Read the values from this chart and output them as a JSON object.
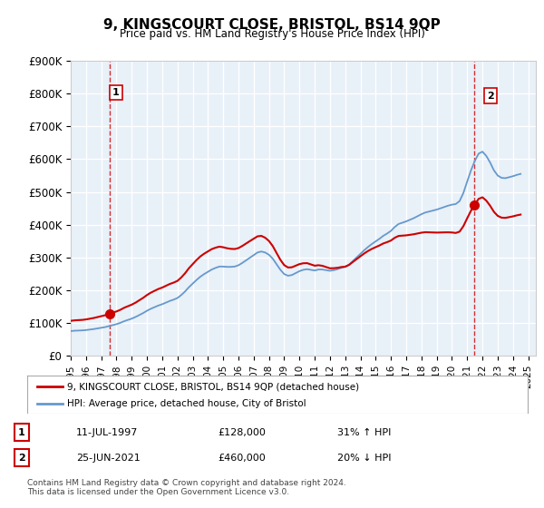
{
  "title": "9, KINGSCOURT CLOSE, BRISTOL, BS14 9QP",
  "subtitle": "Price paid vs. HM Land Registry's House Price Index (HPI)",
  "ylabel": "",
  "ylim": [
    0,
    900000
  ],
  "yticks": [
    0,
    100000,
    200000,
    300000,
    400000,
    500000,
    600000,
    700000,
    800000,
    900000
  ],
  "ytick_labels": [
    "£0",
    "£100K",
    "£200K",
    "£300K",
    "£400K",
    "£500K",
    "£600K",
    "£700K",
    "£800K",
    "£900K"
  ],
  "xlim_start": 1995.0,
  "xlim_end": 2025.5,
  "xticks": [
    1995,
    1996,
    1997,
    1998,
    1999,
    2000,
    2001,
    2002,
    2003,
    2004,
    2005,
    2006,
    2007,
    2008,
    2009,
    2010,
    2011,
    2012,
    2013,
    2014,
    2015,
    2016,
    2017,
    2018,
    2019,
    2020,
    2021,
    2022,
    2023,
    2024,
    2025
  ],
  "background_color": "#e8f0f8",
  "plot_bg_color": "#e8f0f8",
  "fig_bg_color": "#ffffff",
  "grid_color": "#ffffff",
  "red_color": "#cc0000",
  "blue_color": "#6699cc",
  "marker1_x": 1997.53,
  "marker1_y": 128000,
  "marker2_x": 2021.48,
  "marker2_y": 460000,
  "legend_label_red": "9, KINGSCOURT CLOSE, BRISTOL, BS14 9QP (detached house)",
  "legend_label_blue": "HPI: Average price, detached house, City of Bristol",
  "table_row1_num": "1",
  "table_row1_date": "11-JUL-1997",
  "table_row1_price": "£128,000",
  "table_row1_hpi": "31% ↑ HPI",
  "table_row2_num": "2",
  "table_row2_date": "25-JUN-2021",
  "table_row2_price": "£460,000",
  "table_row2_hpi": "20% ↓ HPI",
  "footer": "Contains HM Land Registry data © Crown copyright and database right 2024.\nThis data is licensed under the Open Government Licence v3.0.",
  "hpi_data_x": [
    1995.0,
    1995.25,
    1995.5,
    1995.75,
    1996.0,
    1996.25,
    1996.5,
    1996.75,
    1997.0,
    1997.25,
    1997.5,
    1997.75,
    1998.0,
    1998.25,
    1998.5,
    1998.75,
    1999.0,
    1999.25,
    1999.5,
    1999.75,
    2000.0,
    2000.25,
    2000.5,
    2000.75,
    2001.0,
    2001.25,
    2001.5,
    2001.75,
    2002.0,
    2002.25,
    2002.5,
    2002.75,
    2003.0,
    2003.25,
    2003.5,
    2003.75,
    2004.0,
    2004.25,
    2004.5,
    2004.75,
    2005.0,
    2005.25,
    2005.5,
    2005.75,
    2006.0,
    2006.25,
    2006.5,
    2006.75,
    2007.0,
    2007.25,
    2007.5,
    2007.75,
    2008.0,
    2008.25,
    2008.5,
    2008.75,
    2009.0,
    2009.25,
    2009.5,
    2009.75,
    2010.0,
    2010.25,
    2010.5,
    2010.75,
    2011.0,
    2011.25,
    2011.5,
    2011.75,
    2012.0,
    2012.25,
    2012.5,
    2012.75,
    2013.0,
    2013.25,
    2013.5,
    2013.75,
    2014.0,
    2014.25,
    2014.5,
    2014.75,
    2015.0,
    2015.25,
    2015.5,
    2015.75,
    2016.0,
    2016.25,
    2016.5,
    2016.75,
    2017.0,
    2017.25,
    2017.5,
    2017.75,
    2018.0,
    2018.25,
    2018.5,
    2018.75,
    2019.0,
    2019.25,
    2019.5,
    2019.75,
    2020.0,
    2020.25,
    2020.5,
    2020.75,
    2021.0,
    2021.25,
    2021.5,
    2021.75,
    2022.0,
    2022.25,
    2022.5,
    2022.75,
    2023.0,
    2023.25,
    2023.5,
    2023.75,
    2024.0,
    2024.25,
    2024.5
  ],
  "hpi_data_y": [
    75000,
    76000,
    76500,
    77000,
    78000,
    79500,
    81000,
    83000,
    85000,
    87000,
    90000,
    93000,
    96000,
    100000,
    105000,
    109000,
    113000,
    118000,
    124000,
    130000,
    137000,
    143000,
    148000,
    153000,
    157000,
    162000,
    167000,
    171000,
    176000,
    185000,
    196000,
    209000,
    220000,
    231000,
    241000,
    249000,
    256000,
    263000,
    268000,
    272000,
    272000,
    271000,
    271000,
    272000,
    276000,
    283000,
    291000,
    299000,
    307000,
    315000,
    318000,
    315000,
    308000,
    296000,
    279000,
    262000,
    249000,
    244000,
    246000,
    252000,
    258000,
    262000,
    264000,
    262000,
    260000,
    263000,
    263000,
    261000,
    259000,
    261000,
    264000,
    268000,
    271000,
    278000,
    289000,
    300000,
    311000,
    322000,
    332000,
    341000,
    349000,
    357000,
    366000,
    373000,
    381000,
    393000,
    402000,
    406000,
    410000,
    415000,
    420000,
    426000,
    432000,
    437000,
    440000,
    443000,
    446000,
    450000,
    454000,
    458000,
    461000,
    463000,
    472000,
    497000,
    532000,
    566000,
    595000,
    617000,
    623000,
    610000,
    590000,
    566000,
    550000,
    543000,
    542000,
    545000,
    548000,
    552000,
    555000
  ],
  "property_data_x": [
    1997.53,
    2021.48
  ],
  "property_data_y": [
    128000,
    460000
  ],
  "dashed_vline1_x": 1997.53,
  "dashed_vline2_x": 2021.48
}
